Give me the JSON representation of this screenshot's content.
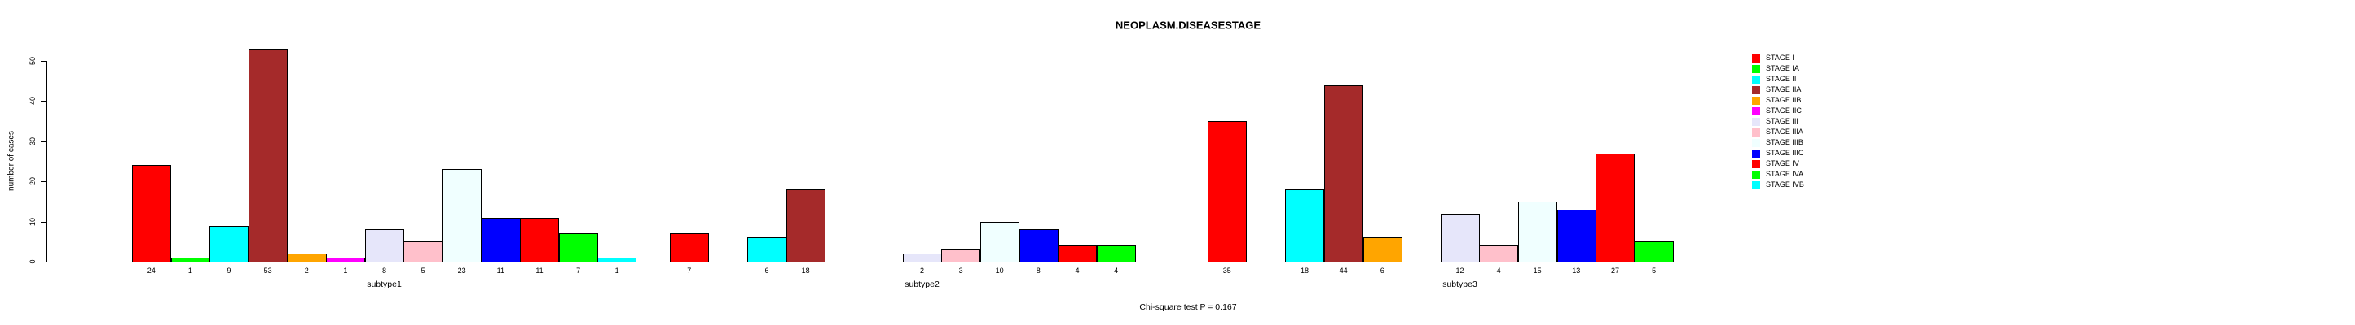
{
  "chart_data": {
    "type": "bar",
    "title": "NEOPLASM.DISEASESTAGE",
    "ylabel": "number of cases",
    "xlabel": "",
    "ylim": [
      0,
      50
    ],
    "yticks": [
      0,
      10,
      20,
      30,
      40,
      50
    ],
    "grid": false,
    "legend_position": "right",
    "annotation": "Chi-square test P = 0.167",
    "stages": [
      {
        "label": "STAGE I",
        "color": "#FF0000"
      },
      {
        "label": "STAGE IA",
        "color": "#00FF00"
      },
      {
        "label": "STAGE II",
        "color": "#00FFFF"
      },
      {
        "label": "STAGE IIA",
        "color": "#A52A2A"
      },
      {
        "label": "STAGE IIB",
        "color": "#FFA500"
      },
      {
        "label": "STAGE IIC",
        "color": "#FF00FF"
      },
      {
        "label": "STAGE III",
        "color": "#E6E6FA"
      },
      {
        "label": "STAGE IIIA",
        "color": "#FFC0CB"
      },
      {
        "label": "STAGE IIIB",
        "color": "#F0FFFF"
      },
      {
        "label": "STAGE IIIC",
        "color": "#0000FF"
      },
      {
        "label": "STAGE IV",
        "color": "#FF0000"
      },
      {
        "label": "STAGE IVA",
        "color": "#00FF00"
      },
      {
        "label": "STAGE IVB",
        "color": "#00FFFF"
      }
    ],
    "groups": [
      {
        "label": "subtype1",
        "values": [
          24,
          1,
          9,
          53,
          2,
          1,
          8,
          5,
          23,
          11,
          11,
          7,
          1
        ]
      },
      {
        "label": "subtype2",
        "values": [
          7,
          0,
          6,
          18,
          0,
          0,
          2,
          3,
          10,
          8,
          4,
          4,
          0
        ]
      },
      {
        "label": "subtype3",
        "values": [
          35,
          0,
          18,
          44,
          6,
          0,
          12,
          4,
          15,
          13,
          27,
          5,
          0
        ]
      }
    ]
  }
}
